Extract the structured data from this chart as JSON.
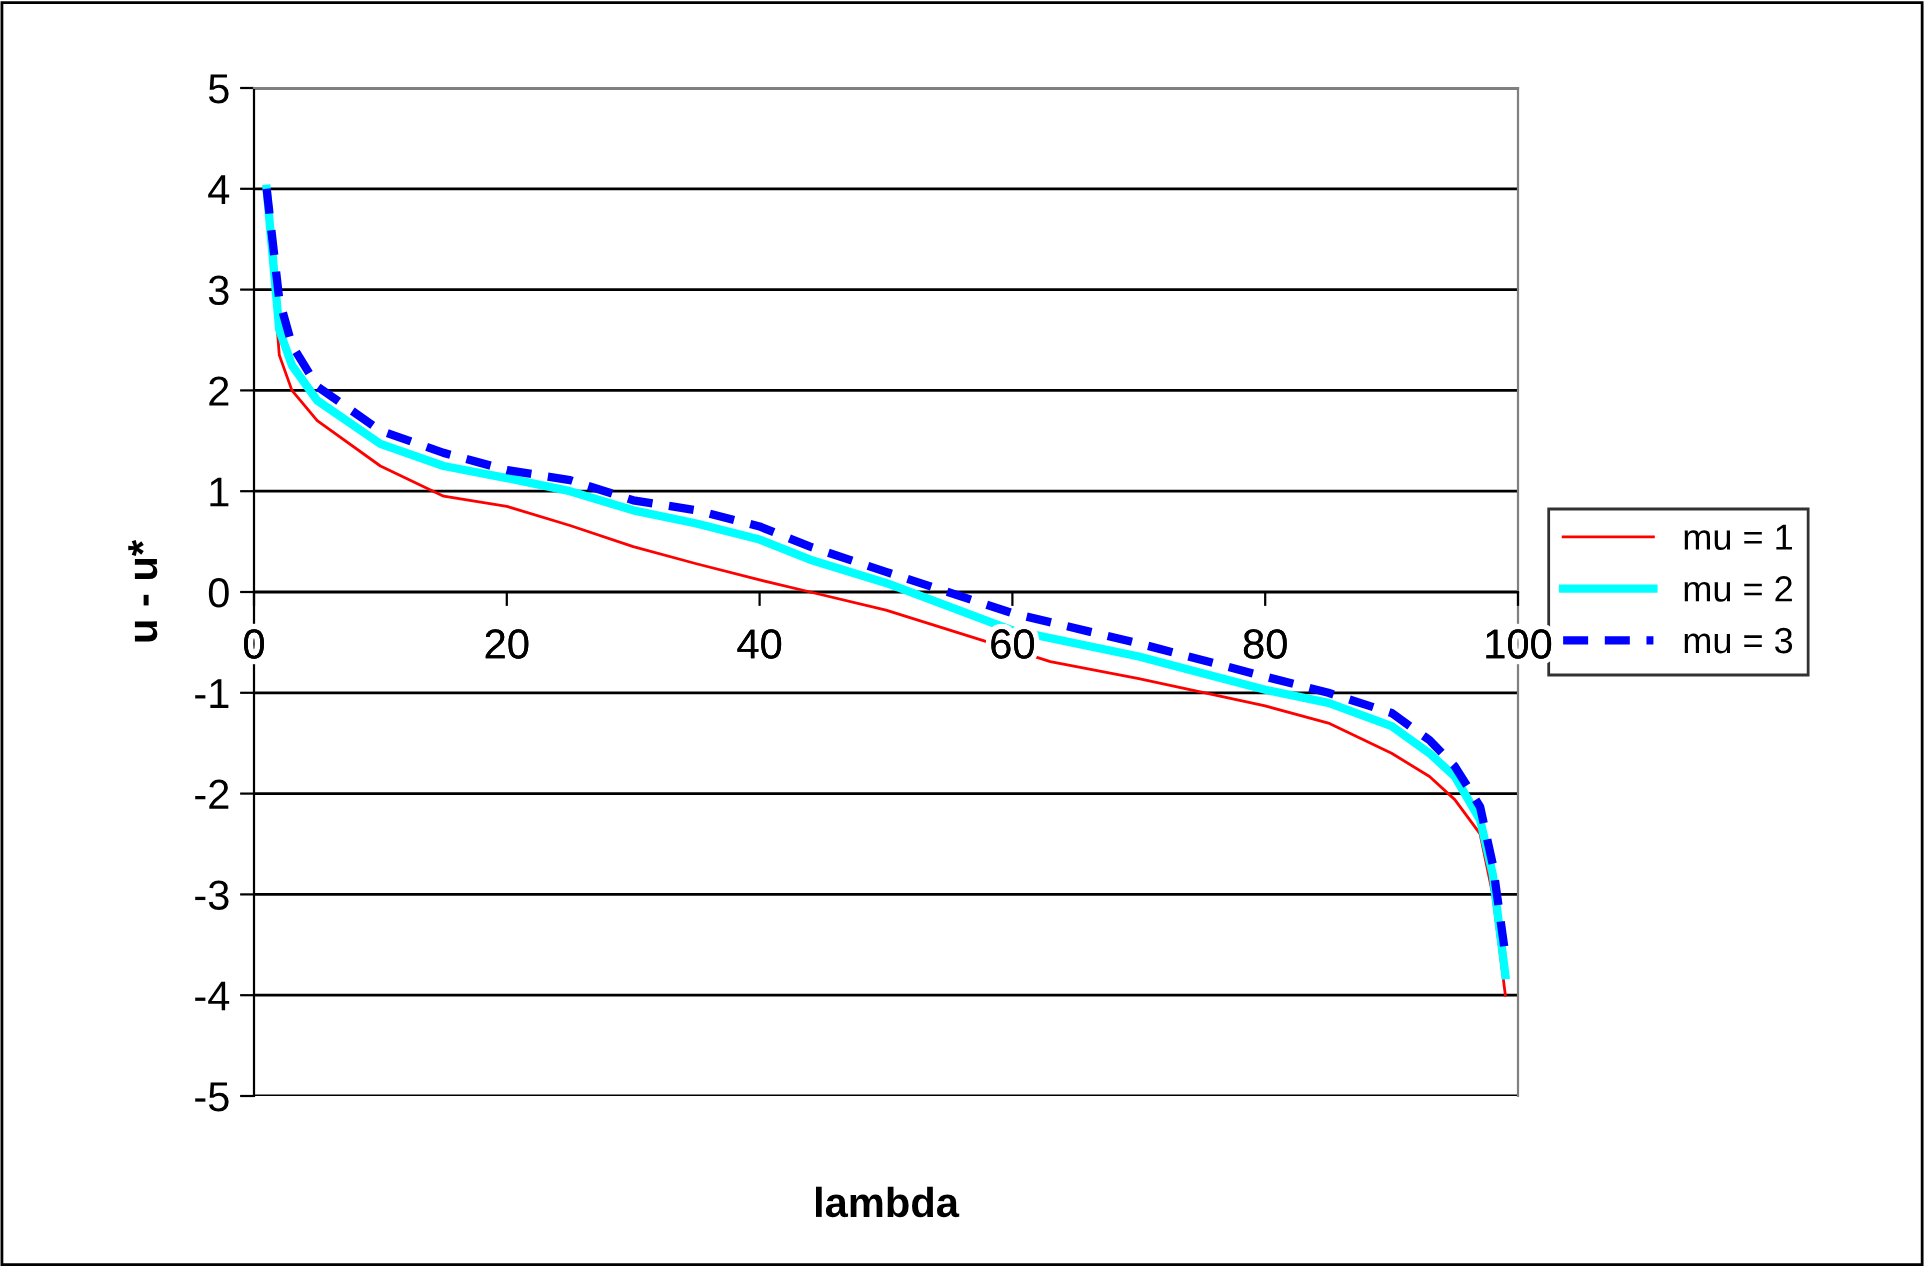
{
  "chart_data": {
    "type": "line",
    "xlabel": "lambda",
    "ylabel": "u - u*",
    "xlim": [
      0,
      100
    ],
    "xticks": [
      0,
      20,
      40,
      60,
      80,
      100
    ],
    "ylim": [
      -5,
      5
    ],
    "yticks": [
      -5,
      -4,
      -3,
      -2,
      -1,
      0,
      1,
      2,
      3,
      4,
      5
    ],
    "grid": "y",
    "legend": "right",
    "series": [
      {
        "name": "mu = 1",
        "color": "#ff0000",
        "line_style": "solid",
        "x": [
          1,
          2,
          3,
          5,
          10,
          15,
          20,
          25,
          30,
          35,
          40,
          44,
          50,
          63,
          70,
          80,
          85,
          90,
          93,
          95,
          97,
          98,
          99
        ],
        "values": [
          4,
          2.35,
          2.0,
          1.7,
          1.25,
          0.95,
          0.85,
          0.66,
          0.45,
          0.28,
          0.12,
          0,
          -0.18,
          -0.69,
          -0.86,
          -1.13,
          -1.3,
          -1.6,
          -1.83,
          -2.06,
          -2.4,
          -3.0,
          -4.0
        ]
      },
      {
        "name": "mu = 2",
        "color": "#00ffff",
        "line_style": "solid",
        "x": [
          1,
          2,
          3,
          5,
          10,
          15,
          20,
          25,
          30,
          35,
          40,
          44,
          50,
          60,
          70,
          80,
          85,
          90,
          93,
          95,
          97,
          98,
          99
        ],
        "values": [
          4,
          2.6,
          2.25,
          1.9,
          1.47,
          1.25,
          1.13,
          1.0,
          0.81,
          0.68,
          0.52,
          0.32,
          0.09,
          -0.38,
          -0.64,
          -0.97,
          -1.1,
          -1.33,
          -1.6,
          -1.83,
          -2.26,
          -2.8,
          -3.8
        ]
      },
      {
        "name": "mu = 3",
        "color": "#0000ff",
        "line_style": "dashed",
        "x": [
          1,
          2,
          3,
          5,
          10,
          15,
          20,
          25,
          30,
          35,
          40,
          44,
          50,
          60,
          70,
          80,
          85,
          90,
          93,
          95,
          97,
          98,
          99
        ],
        "values": [
          4,
          2.9,
          2.45,
          2.04,
          1.6,
          1.38,
          1.21,
          1.11,
          0.91,
          0.81,
          0.65,
          0.45,
          0.2,
          -0.21,
          -0.51,
          -0.84,
          -1.0,
          -1.2,
          -1.47,
          -1.73,
          -2.13,
          -2.7,
          -3.6
        ]
      }
    ]
  }
}
